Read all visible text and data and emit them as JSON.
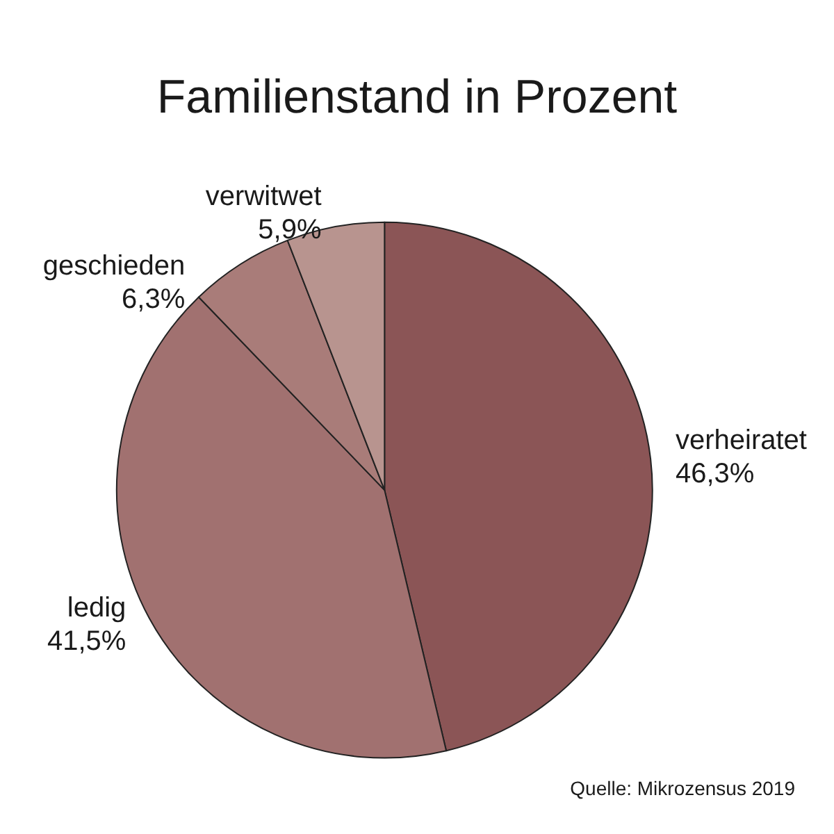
{
  "chart_data": {
    "type": "pie",
    "title": "Familienstand in Prozent",
    "categories": [
      "verheiratet",
      "ledig",
      "geschieden",
      "verwitwet"
    ],
    "values": [
      46.3,
      41.5,
      6.3,
      5.9
    ],
    "value_labels": [
      "46,3%",
      "41,5%",
      "6,3%",
      "5,9%"
    ],
    "colors": [
      "#8b5556",
      "#a17170",
      "#a97c79",
      "#b8948f"
    ],
    "legend": false,
    "annotations": [
      "Quelle: Mikrozensus 2019"
    ]
  }
}
